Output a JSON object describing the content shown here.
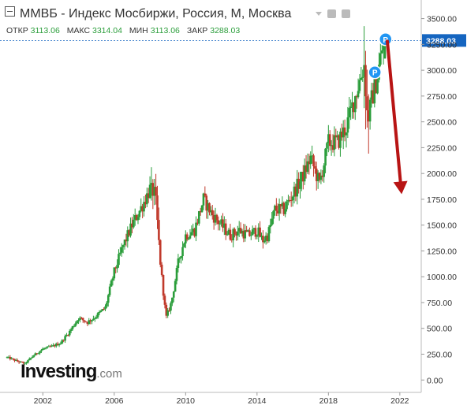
{
  "header": {
    "title": "ММВБ - Индекс Мосбиржи, Россия, М, Москва",
    "open_label": "ОТКР",
    "open_value": "3113.06",
    "high_label": "МАКС",
    "high_value": "3314.04",
    "low_label": "МИН",
    "low_value": "3113.06",
    "close_label": "ЗАКР",
    "close_value": "3288.03"
  },
  "watermark": {
    "brand": "Investing",
    "suffix": ".com"
  },
  "markers": {
    "p_label": "P"
  },
  "colors": {
    "up": "#2a9d3a",
    "down": "#c0392b",
    "arrow": "#b81414",
    "last_price": "#1565c0",
    "marker": "#2196f3"
  },
  "chart_data": {
    "type": "candlestick",
    "title": "ММВБ - Индекс Мосбиржи, Россия, М, Москва",
    "timeframe": "monthly",
    "ylim": [
      -120,
      3680
    ],
    "xlim": [
      1999.6,
      2023.2
    ],
    "y_ticks": [
      "0.00",
      "250.00",
      "500.00",
      "750.00",
      "1000.00",
      "1250.00",
      "1500.00",
      "1750.00",
      "2000.00",
      "2250.00",
      "2500.00",
      "2750.00",
      "3000.00",
      "3250.00",
      "3500.00"
    ],
    "x_ticks": [
      "2002",
      "2006",
      "2010",
      "2014",
      "2018",
      "2022"
    ],
    "last_price_label": "3288.03",
    "close_path": [
      [
        2000.0,
        220
      ],
      [
        2000.6,
        180
      ],
      [
        2001.0,
        160
      ],
      [
        2001.5,
        240
      ],
      [
        2002.0,
        300
      ],
      [
        2002.6,
        330
      ],
      [
        2003.0,
        360
      ],
      [
        2003.5,
        470
      ],
      [
        2004.0,
        600
      ],
      [
        2004.5,
        560
      ],
      [
        2005.0,
        620
      ],
      [
        2005.5,
        700
      ],
      [
        2006.0,
        1050
      ],
      [
        2006.5,
        1300
      ],
      [
        2007.0,
        1500
      ],
      [
        2007.6,
        1700
      ],
      [
        2008.0,
        1850
      ],
      [
        2008.3,
        1800
      ],
      [
        2008.6,
        1100
      ],
      [
        2008.9,
        600
      ],
      [
        2009.2,
        750
      ],
      [
        2009.6,
        1150
      ],
      [
        2010.0,
        1400
      ],
      [
        2010.5,
        1450
      ],
      [
        2011.0,
        1750
      ],
      [
        2011.5,
        1600
      ],
      [
        2012.0,
        1500
      ],
      [
        2012.5,
        1400
      ],
      [
        2013.0,
        1450
      ],
      [
        2013.5,
        1400
      ],
      [
        2014.0,
        1450
      ],
      [
        2014.3,
        1350
      ],
      [
        2014.6,
        1400
      ],
      [
        2015.0,
        1650
      ],
      [
        2015.5,
        1650
      ],
      [
        2016.0,
        1800
      ],
      [
        2016.5,
        1950
      ],
      [
        2017.0,
        2150
      ],
      [
        2017.5,
        1900
      ],
      [
        2018.0,
        2300
      ],
      [
        2018.5,
        2300
      ],
      [
        2019.0,
        2450
      ],
      [
        2019.5,
        2750
      ],
      [
        2020.0,
        3050
      ],
      [
        2020.2,
        2500
      ],
      [
        2020.4,
        2700
      ],
      [
        2020.7,
        2900
      ],
      [
        2021.0,
        3200
      ],
      [
        2021.2,
        3288.03
      ]
    ],
    "bands": [
      [
        2008.0,
        2008.6,
        100
      ],
      [
        2020.0,
        2020.3,
        400
      ]
    ],
    "last_candle": {
      "open": 3113.06,
      "high": 3314.04,
      "low": 3113.06,
      "close": 3288.03
    },
    "annotations": [
      {
        "type": "marker",
        "label": "P",
        "x": 2020.6,
        "y": 2980
      },
      {
        "type": "marker",
        "label": "P",
        "x": 2021.2,
        "y": 3300
      },
      {
        "type": "arrow",
        "from": [
          2021.3,
          3280
        ],
        "to": [
          2022.1,
          1800
        ]
      }
    ]
  }
}
